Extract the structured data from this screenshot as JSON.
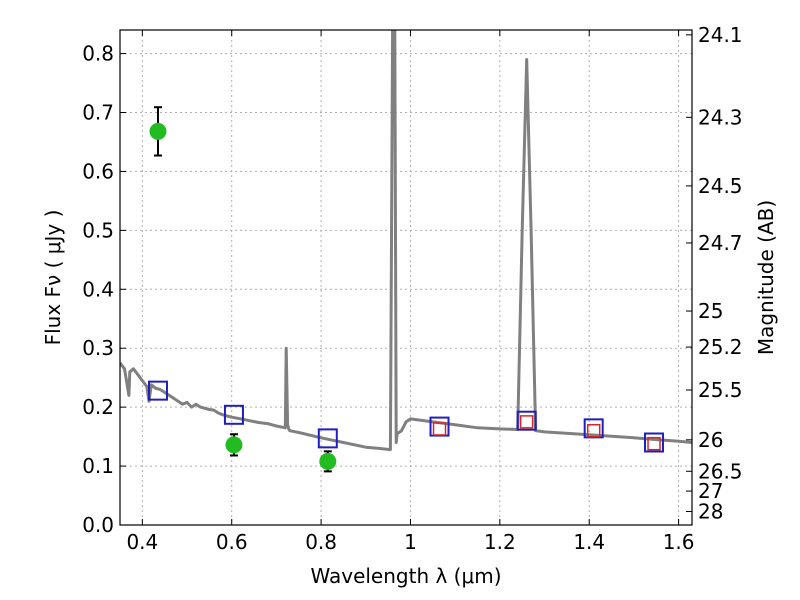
{
  "chart_data": {
    "type": "scatter",
    "xlabel": "Wavelength  λ (μm)",
    "ylabel": "Flux  Fν  ( μJy )",
    "y2label": "Magnitude (AB)",
    "xlim": [
      0.35,
      1.63
    ],
    "ylim": [
      0.0,
      0.84
    ],
    "grid": true,
    "x_ticks": [
      0.4,
      0.6,
      0.8,
      1.0,
      1.2,
      1.4,
      1.6
    ],
    "x_tick_labels": [
      "0.4",
      "0.6",
      "0.8",
      "1",
      "1.2",
      "1.4",
      "1.6"
    ],
    "y_ticks": [
      0.0,
      0.1,
      0.2,
      0.3,
      0.4,
      0.5,
      0.6,
      0.7,
      0.8
    ],
    "y_tick_labels": [
      "0.0",
      "0.1",
      "0.2",
      "0.3",
      "0.4",
      "0.5",
      "0.6",
      "0.7",
      "0.8"
    ],
    "y2_tick_labels": [
      "24.1",
      "24.3",
      "24.5",
      "24.7",
      "25",
      "25.2",
      "25.5",
      "26",
      "26.5",
      "27",
      "28"
    ],
    "colors": {
      "model": "#808080",
      "observed": "#22bb22",
      "model_photometry": "#1f1fbf",
      "hst_photometry": "#d62728",
      "grid": "#b0b0b0"
    },
    "series": [
      {
        "kind": "line",
        "x": [
          0.35,
          0.36,
          0.37,
          0.372,
          0.38,
          0.39,
          0.4,
          0.41,
          0.415,
          0.42,
          0.43,
          0.44,
          0.45,
          0.46,
          0.47,
          0.48,
          0.49,
          0.5,
          0.51,
          0.52,
          0.53,
          0.54,
          0.55,
          0.56,
          0.57,
          0.58,
          0.59,
          0.6,
          0.62,
          0.64,
          0.66,
          0.68,
          0.7,
          0.72,
          0.722,
          0.725,
          0.728,
          0.73,
          0.75,
          0.8,
          0.85,
          0.9,
          0.93,
          0.955,
          0.96,
          0.962,
          0.965,
          0.968,
          0.97,
          0.98,
          0.99,
          1.0,
          1.05,
          1.1,
          1.15,
          1.2,
          1.24,
          1.25,
          1.26,
          1.27,
          1.28,
          1.3,
          1.4,
          1.5,
          1.55,
          1.6,
          1.63
        ],
        "y": [
          0.275,
          0.265,
          0.22,
          0.26,
          0.265,
          0.255,
          0.245,
          0.235,
          0.21,
          0.238,
          0.232,
          0.23,
          0.225,
          0.22,
          0.215,
          0.21,
          0.205,
          0.208,
          0.2,
          0.205,
          0.2,
          0.198,
          0.196,
          0.195,
          0.19,
          0.187,
          0.185,
          0.183,
          0.18,
          0.177,
          0.174,
          0.172,
          0.168,
          0.165,
          0.3,
          0.17,
          0.162,
          0.16,
          0.157,
          0.148,
          0.14,
          0.132,
          0.13,
          0.128,
          0.84,
          0.84,
          0.84,
          0.14,
          0.155,
          0.16,
          0.175,
          0.18,
          0.175,
          0.17,
          0.165,
          0.163,
          0.162,
          0.5,
          0.79,
          0.5,
          0.16,
          0.158,
          0.153,
          0.148,
          0.145,
          0.142,
          0.14
        ]
      },
      {
        "kind": "points",
        "x": [
          0.435,
          0.605,
          0.815
        ],
        "y": [
          0.668,
          0.136,
          0.108
        ],
        "yerr": [
          0.041,
          0.018,
          0.017
        ]
      },
      {
        "kind": "open-squares",
        "x": [
          0.435,
          0.605,
          0.815,
          1.065,
          1.26,
          1.41,
          1.545
        ],
        "y": [
          0.228,
          0.187,
          0.147,
          0.167,
          0.177,
          0.164,
          0.14
        ]
      },
      {
        "kind": "open-squares",
        "x": [
          1.065,
          1.26,
          1.41,
          1.545
        ],
        "y": [
          0.163,
          0.175,
          0.16,
          0.138
        ]
      }
    ]
  }
}
